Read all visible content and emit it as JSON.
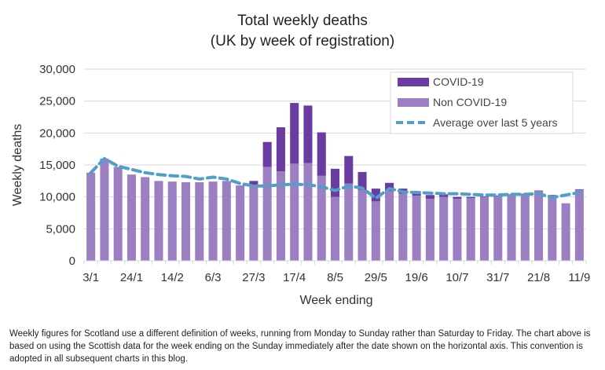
{
  "chart_data": {
    "type": "bar",
    "stacked": true,
    "title": "Total weekly deaths",
    "subtitle": "(UK by week of registration)",
    "xlabel": "Week ending",
    "ylabel": "Weekly deaths",
    "ylim": [
      0,
      30000
    ],
    "yticks": [
      0,
      5000,
      10000,
      15000,
      20000,
      25000,
      30000
    ],
    "ytick_labels": [
      "0",
      "5,000",
      "10,000",
      "15,000",
      "20,000",
      "25,000",
      "30,000"
    ],
    "grid": true,
    "legend_position": "top-right",
    "x_tick_labels": [
      "3/1",
      "24/1",
      "14/2",
      "6/3",
      "27/3",
      "17/4",
      "8/5",
      "29/5",
      "19/6",
      "10/7",
      "31/7",
      "21/8",
      "11/9"
    ],
    "x_tick_every": 3,
    "categories": [
      "3/1",
      "10/1",
      "17/1",
      "24/1",
      "31/1",
      "7/2",
      "14/2",
      "21/2",
      "28/2",
      "6/3",
      "13/3",
      "20/3",
      "27/3",
      "3/4",
      "10/4",
      "17/4",
      "24/4",
      "1/5",
      "8/5",
      "15/5",
      "22/5",
      "29/5",
      "5/6",
      "12/6",
      "19/6",
      "26/6",
      "3/7",
      "10/7",
      "17/7",
      "24/7",
      "31/7",
      "7/8",
      "14/8",
      "21/8",
      "28/8",
      "4/9",
      "11/9"
    ],
    "series": [
      {
        "name": "Non COVID-19",
        "type": "bar",
        "color": "#9b7fc2",
        "values": [
          13800,
          16000,
          14700,
          13500,
          13100,
          12500,
          12400,
          12300,
          12300,
          12400,
          12500,
          11800,
          11900,
          14700,
          14000,
          15200,
          15300,
          13300,
          10000,
          12100,
          11100,
          9300,
          10900,
          10500,
          10200,
          9700,
          10000,
          9700,
          9800,
          10000,
          10100,
          10300,
          10400,
          10900,
          10200,
          9000,
          11100
        ]
      },
      {
        "name": "COVID-19",
        "type": "bar",
        "color": "#6a3ba0",
        "values": [
          0,
          0,
          0,
          0,
          0,
          0,
          0,
          0,
          0,
          0,
          0,
          0,
          600,
          3900,
          6900,
          9500,
          9000,
          6800,
          4400,
          4300,
          2800,
          2000,
          1300,
          800,
          700,
          600,
          400,
          300,
          200,
          100,
          100,
          100,
          100,
          100,
          100,
          0,
          100
        ]
      },
      {
        "name": "Average over last 5 years",
        "type": "line",
        "style": "dashed",
        "color": "#4f9fc9",
        "values": [
          13800,
          16000,
          14800,
          14300,
          13800,
          13500,
          13300,
          13200,
          12800,
          13100,
          12800,
          12100,
          11700,
          11700,
          11900,
          12000,
          11900,
          11600,
          11000,
          11700,
          11400,
          9800,
          11300,
          10800,
          10700,
          10600,
          10500,
          10500,
          10400,
          10300,
          10300,
          10400,
          10400,
          10500,
          9900,
          10300,
          10700
        ]
      }
    ]
  },
  "footnote": "Weekly figures for Scotland use a different definition of weeks, running from Monday to Sunday rather than Saturday to Friday. The chart above is based on using the Scottish data for the week ending on the Sunday immediately after the date shown on the horizontal axis. This convention is adopted in all subsequent charts in this blog."
}
